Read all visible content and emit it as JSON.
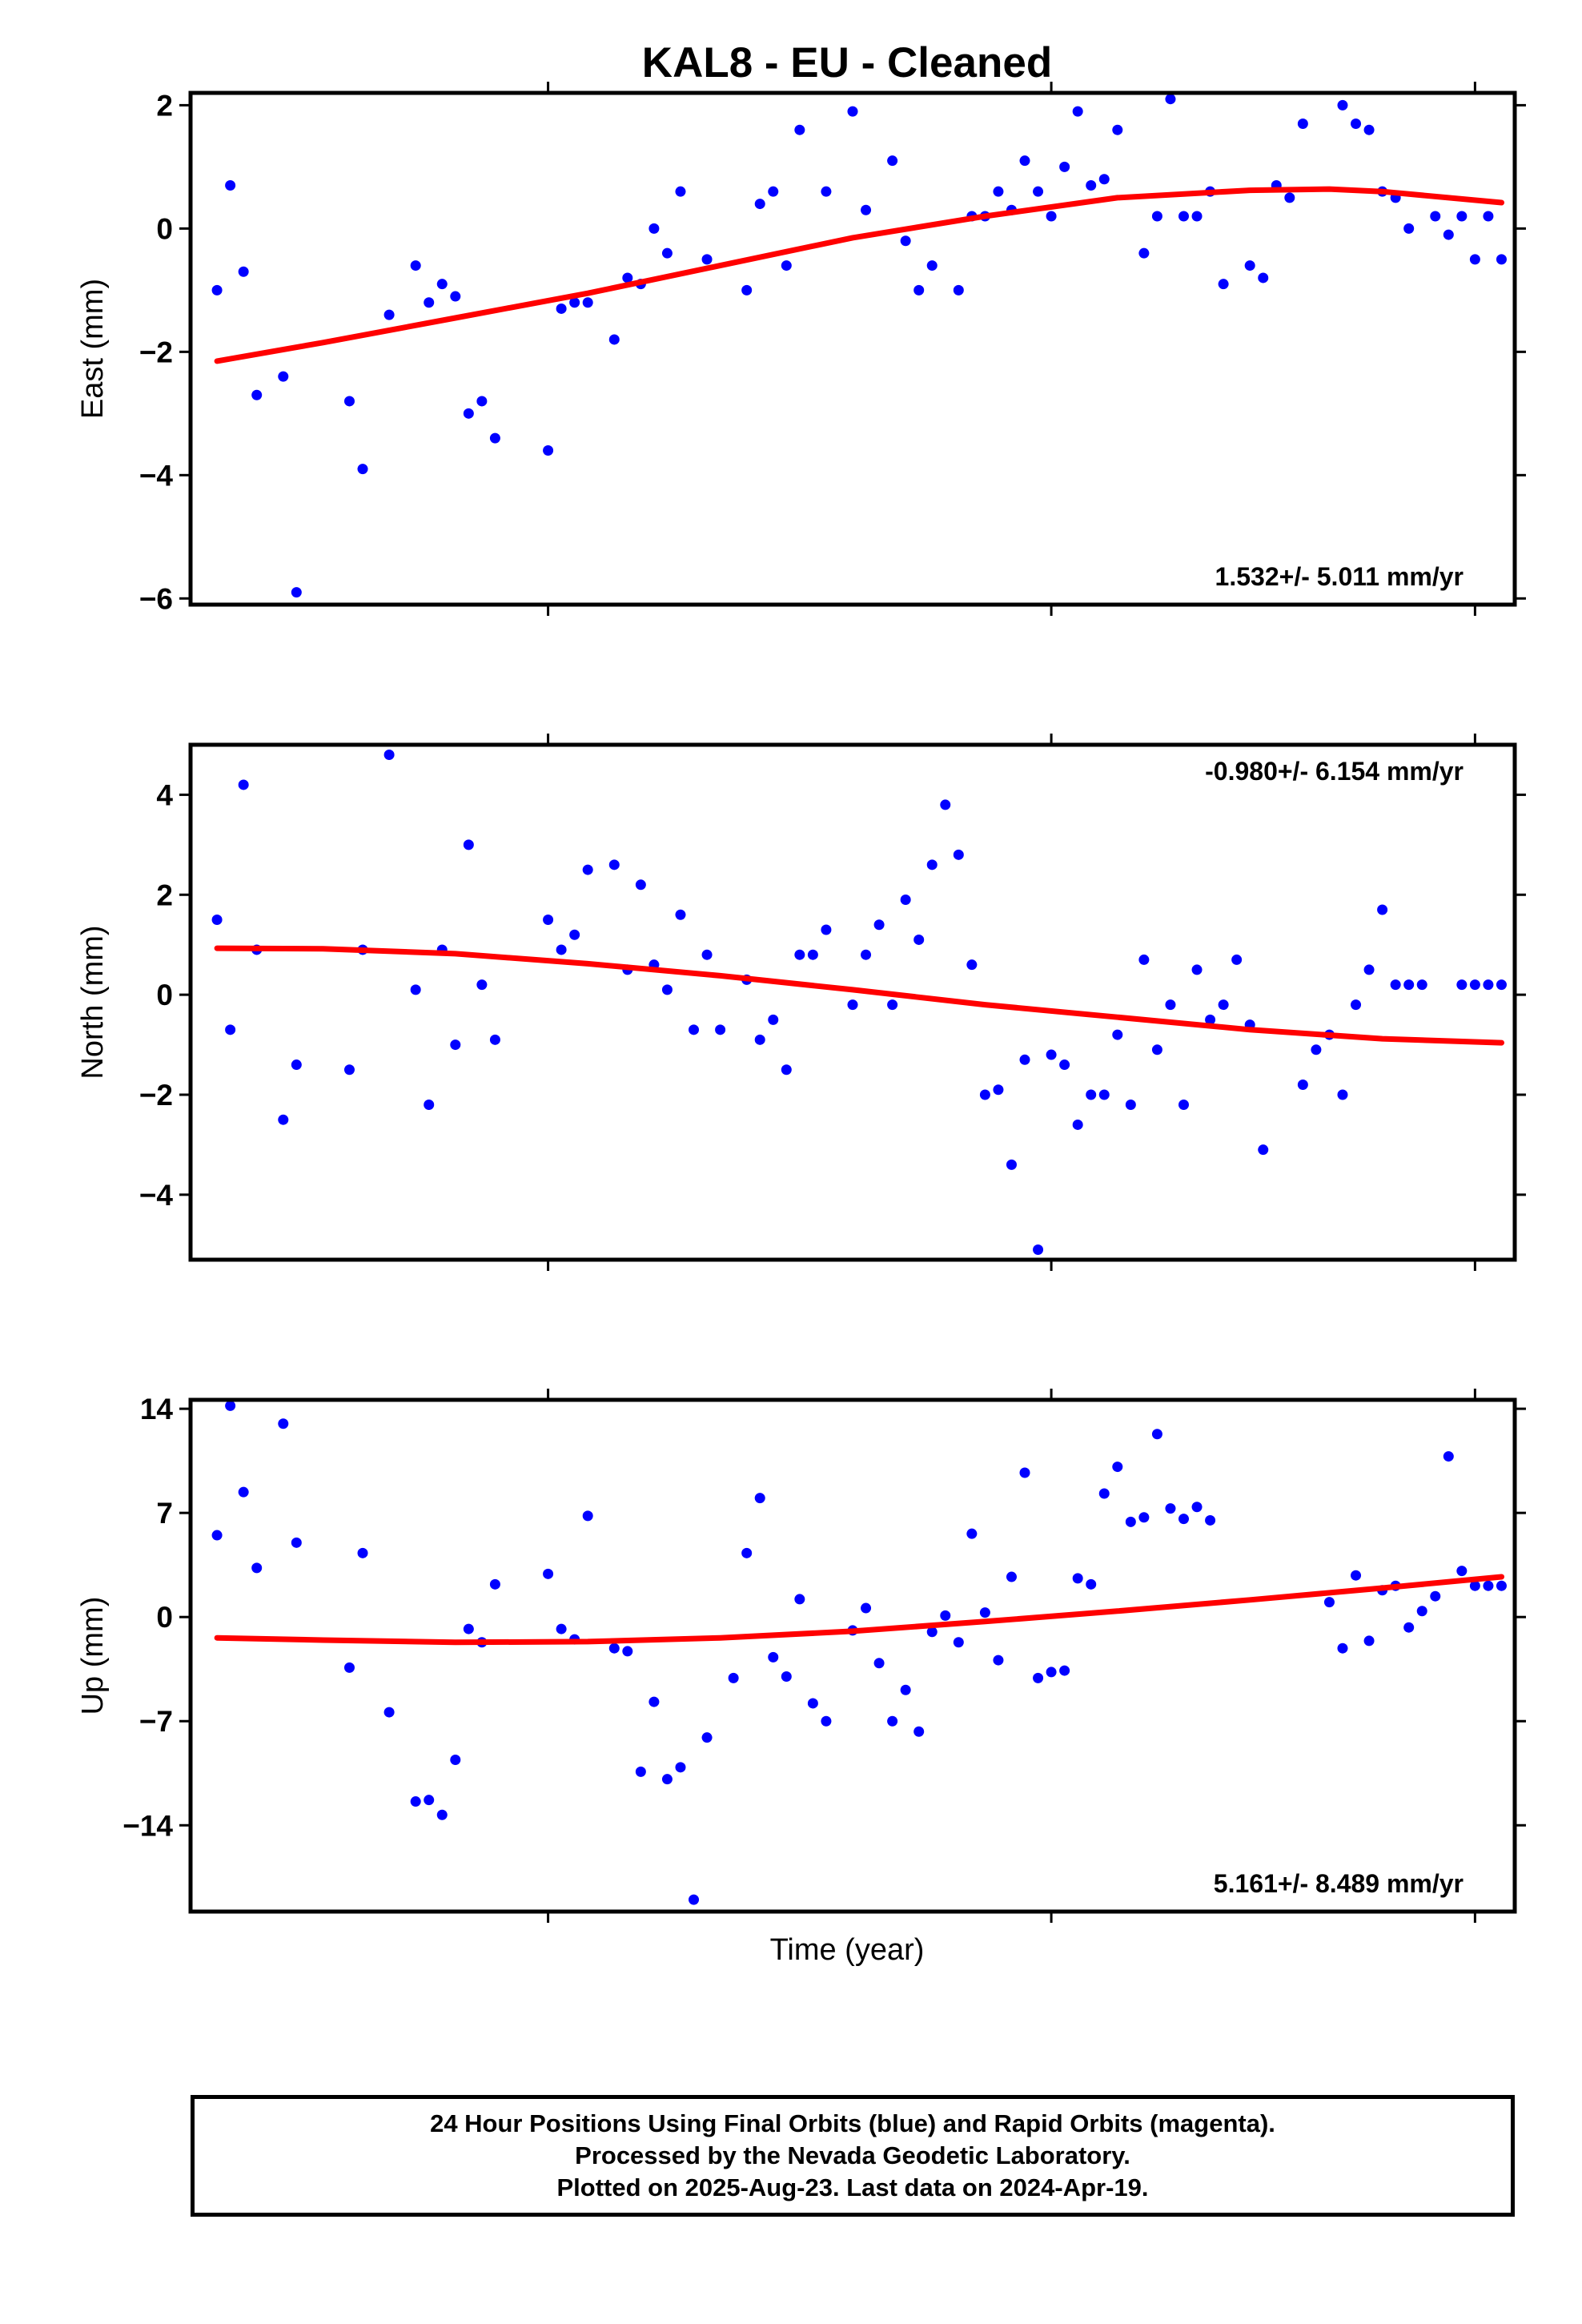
{
  "title": "KAL8  - EU - Cleaned",
  "xlabel": "Time (year)",
  "footer": {
    "line1": "24 Hour Positions Using Final Orbits (blue) and Rapid Orbits (magenta).",
    "line2": "Processed by the Nevada Geodetic Laboratory.",
    "line3": "Plotted on 2025-Aug-23. Last data on 2024-Apr-19."
  },
  "colors": {
    "points": "#0000ff",
    "fit": "#ff0000",
    "axes": "#000000"
  },
  "chart_data": [
    {
      "type": "scatter",
      "ylabel": "East (mm)",
      "rate": "1.532+/- 5.011 mm/yr",
      "ylim": [
        -6.1,
        2.2
      ],
      "yticks": [
        2,
        0,
        -2,
        -4,
        -6
      ],
      "ytick_labels": [
        "2",
        "0",
        "−2",
        "−4",
        "−6"
      ],
      "series": [
        {
          "x": [
            0.02,
            0.03,
            0.04,
            0.05,
            0.07,
            0.08,
            0.12,
            0.13,
            0.15,
            0.17,
            0.18,
            0.19,
            0.2,
            0.21,
            0.22,
            0.23,
            0.27,
            0.28,
            0.29,
            0.3,
            0.32,
            0.33,
            0.34,
            0.35,
            0.36,
            0.37,
            0.39,
            0.42,
            0.43,
            0.44,
            0.45,
            0.46,
            0.48,
            0.5,
            0.51,
            0.53,
            0.54,
            0.55,
            0.56,
            0.58,
            0.59,
            0.6,
            0.61,
            0.62,
            0.63,
            0.64,
            0.65,
            0.66,
            0.67,
            0.68,
            0.69,
            0.7,
            0.72,
            0.73,
            0.74,
            0.75,
            0.76,
            0.77,
            0.78,
            0.8,
            0.81,
            0.82,
            0.83,
            0.84,
            0.87,
            0.88,
            0.89,
            0.9,
            0.91,
            0.92,
            0.94,
            0.95,
            0.96,
            0.97,
            0.98,
            0.99
          ],
          "y": [
            -1,
            0.7,
            -0.7,
            -2.7,
            -2.4,
            -5.9,
            -2.8,
            -3.9,
            -1.4,
            -0.6,
            -1.2,
            -0.9,
            -1.1,
            -3,
            -2.8,
            -3.4,
            -3.6,
            -1.3,
            -1.2,
            -1.2,
            -1.8,
            -0.8,
            -0.9,
            0,
            -0.4,
            0.6,
            -0.5,
            -1,
            0.4,
            0.6,
            -0.6,
            1.6,
            0.6,
            1.9,
            0.3,
            1.1,
            -0.2,
            -1,
            -0.6,
            -1,
            0.2,
            0.2,
            0.6,
            0.3,
            1.1,
            0.6,
            0.2,
            1,
            1.9,
            0.7,
            0.8,
            1.6,
            -0.4,
            0.2,
            2.1,
            0.2,
            0.2,
            0.6,
            -0.9,
            -0.6,
            -0.8,
            0.7,
            0.5,
            1.7,
            2,
            1.7,
            1.6,
            0.6,
            0.5,
            0,
            0.2,
            -0.1,
            0.2,
            -0.5,
            0.2,
            -0.5
          ]
        }
      ],
      "fit": {
        "x": [
          0.02,
          0.1,
          0.2,
          0.3,
          0.4,
          0.5,
          0.6,
          0.7,
          0.8,
          0.86,
          0.9,
          0.99
        ],
        "y": [
          -2.15,
          -1.85,
          -1.45,
          -1.05,
          -0.6,
          -0.15,
          0.2,
          0.5,
          0.62,
          0.64,
          0.6,
          0.42
        ]
      }
    },
    {
      "type": "scatter",
      "ylabel": "North (mm)",
      "rate": "-0.980+/- 6.154 mm/yr",
      "ylim": [
        -5.3,
        5.0
      ],
      "yticks": [
        4,
        2,
        0,
        -2,
        -4
      ],
      "ytick_labels": [
        "4",
        "2",
        "0",
        "−2",
        "−4"
      ],
      "series": [
        {
          "x": [
            0.02,
            0.03,
            0.04,
            0.05,
            0.07,
            0.08,
            0.12,
            0.13,
            0.15,
            0.17,
            0.18,
            0.19,
            0.2,
            0.21,
            0.22,
            0.23,
            0.27,
            0.28,
            0.29,
            0.3,
            0.32,
            0.33,
            0.34,
            0.35,
            0.36,
            0.37,
            0.38,
            0.39,
            0.4,
            0.42,
            0.43,
            0.44,
            0.45,
            0.46,
            0.47,
            0.48,
            0.5,
            0.51,
            0.52,
            0.53,
            0.54,
            0.55,
            0.56,
            0.57,
            0.58,
            0.59,
            0.6,
            0.61,
            0.62,
            0.63,
            0.64,
            0.65,
            0.66,
            0.67,
            0.68,
            0.69,
            0.7,
            0.71,
            0.72,
            0.73,
            0.74,
            0.75,
            0.76,
            0.77,
            0.78,
            0.79,
            0.8,
            0.81,
            0.84,
            0.85,
            0.86,
            0.87,
            0.88,
            0.89,
            0.9,
            0.91,
            0.92,
            0.93,
            0.96,
            0.97,
            0.98,
            0.99
          ],
          "y": [
            1.5,
            -0.7,
            4.2,
            0.9,
            -2.5,
            -1.4,
            -1.5,
            0.9,
            4.8,
            0.1,
            -2.2,
            0.9,
            -1,
            3,
            0.2,
            -0.9,
            1.5,
            0.9,
            1.2,
            2.5,
            2.6,
            0.5,
            2.2,
            0.6,
            0.1,
            1.6,
            -0.7,
            0.8,
            -0.7,
            0.3,
            -0.9,
            -0.5,
            -1.5,
            0.8,
            0.8,
            1.3,
            -0.2,
            0.8,
            1.4,
            -0.2,
            1.9,
            1.1,
            2.6,
            3.8,
            2.8,
            0.6,
            -2,
            -1.9,
            -3.4,
            -1.3,
            -5.1,
            -1.2,
            -1.4,
            -2.6,
            -2,
            -2,
            -0.8,
            -2.2,
            0.7,
            -1.1,
            -0.2,
            -2.2,
            0.5,
            -0.5,
            -0.2,
            0.7,
            -0.6,
            -3.1,
            -1.8,
            -1.1,
            -0.8,
            -2,
            -0.2,
            0.5,
            1.7,
            0.2,
            0.2,
            0.2,
            0.2,
            0.2,
            0.2,
            0.2
          ]
        }
      ],
      "fit": {
        "x": [
          0.02,
          0.1,
          0.2,
          0.3,
          0.4,
          0.5,
          0.6,
          0.7,
          0.8,
          0.9,
          0.99
        ],
        "y": [
          0.93,
          0.92,
          0.82,
          0.62,
          0.38,
          0.1,
          -0.2,
          -0.45,
          -0.7,
          -0.88,
          -0.96
        ]
      }
    },
    {
      "type": "scatter",
      "ylabel": "Up (mm)",
      "rate": "5.161+/- 8.489 mm/yr",
      "ylim": [
        -19.8,
        14.6
      ],
      "yticks": [
        14,
        7,
        0,
        -7,
        -14
      ],
      "ytick_labels": [
        "14",
        "7",
        "0",
        "−7",
        "−14"
      ],
      "series": [
        {
          "x": [
            0.02,
            0.03,
            0.04,
            0.05,
            0.07,
            0.08,
            0.12,
            0.13,
            0.15,
            0.17,
            0.18,
            0.19,
            0.2,
            0.21,
            0.22,
            0.23,
            0.27,
            0.28,
            0.29,
            0.3,
            0.32,
            0.33,
            0.34,
            0.35,
            0.36,
            0.37,
            0.38,
            0.39,
            0.41,
            0.42,
            0.43,
            0.44,
            0.45,
            0.46,
            0.47,
            0.48,
            0.5,
            0.51,
            0.52,
            0.53,
            0.54,
            0.55,
            0.56,
            0.57,
            0.58,
            0.59,
            0.6,
            0.61,
            0.62,
            0.63,
            0.64,
            0.65,
            0.66,
            0.67,
            0.68,
            0.69,
            0.7,
            0.71,
            0.72,
            0.73,
            0.74,
            0.75,
            0.76,
            0.77,
            0.86,
            0.87,
            0.88,
            0.89,
            0.9,
            0.91,
            0.92,
            0.93,
            0.94,
            0.95,
            0.96,
            0.97,
            0.98,
            0.99
          ],
          "y": [
            5.5,
            14.2,
            8.4,
            3.3,
            13,
            5,
            -3.4,
            4.3,
            -6.4,
            -12.4,
            -12.3,
            -13.3,
            -9.6,
            -0.8,
            -1.7,
            2.2,
            2.9,
            -0.8,
            -1.5,
            6.8,
            -2.1,
            -2.3,
            -10.4,
            -5.7,
            -10.9,
            -10.1,
            -19,
            -8.1,
            -4.1,
            4.3,
            8,
            -2.7,
            -4,
            1.2,
            -5.8,
            -7,
            -0.9,
            0.6,
            -3.1,
            -7,
            -4.9,
            -7.7,
            -1,
            0.1,
            -1.7,
            5.6,
            0.3,
            -2.9,
            2.7,
            9.7,
            -4.1,
            -3.7,
            -3.6,
            2.6,
            2.2,
            8.3,
            10.1,
            6.4,
            6.7,
            12.3,
            7.3,
            6.6,
            7.4,
            6.5,
            1,
            -2.1,
            2.8,
            -1.6,
            1.8,
            2.1,
            -0.7,
            0.4,
            1.4,
            10.8,
            3.1,
            2.1,
            2.1,
            2.1
          ]
        }
      ],
      "fit": {
        "x": [
          0.02,
          0.1,
          0.2,
          0.3,
          0.4,
          0.5,
          0.6,
          0.7,
          0.8,
          0.9,
          0.99
        ],
        "y": [
          -1.4,
          -1.55,
          -1.7,
          -1.65,
          -1.4,
          -0.95,
          -0.3,
          0.4,
          1.15,
          1.95,
          2.7
        ]
      }
    }
  ]
}
